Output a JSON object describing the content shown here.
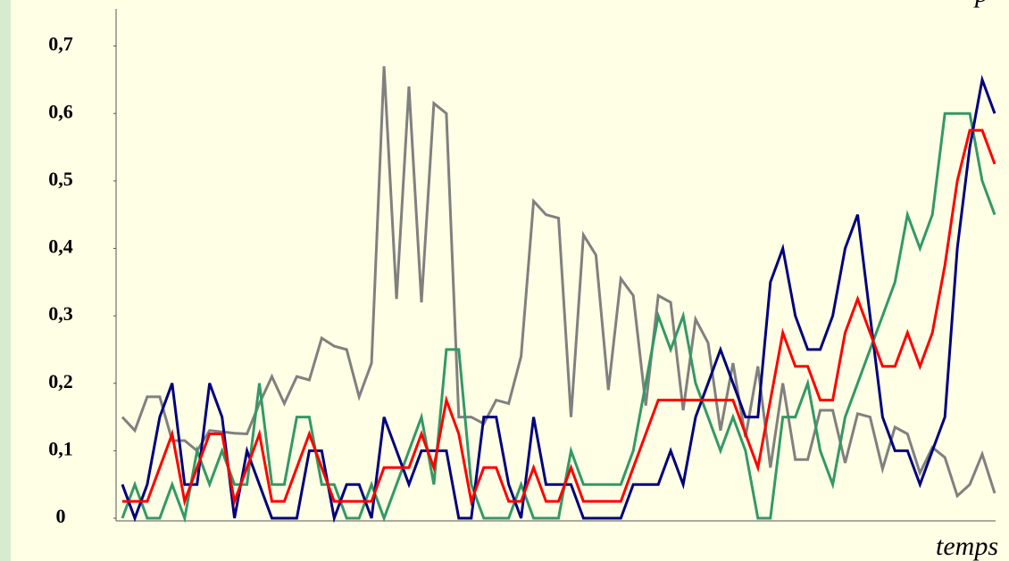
{
  "chart_data": {
    "type": "line",
    "x_label": "temps",
    "y_label": "p",
    "ylim": [
      0,
      0.755
    ],
    "yticks": [
      0,
      {
        "value": 0.1,
        "label": "0,1"
      },
      {
        "value": 0.2,
        "label": "0,2"
      },
      {
        "value": 0.3,
        "label": "0,3"
      },
      {
        "value": 0.4,
        "label": "0,4"
      },
      {
        "value": 0.5,
        "label": "0,5"
      },
      {
        "value": 0.6,
        "label": "0,6"
      },
      {
        "value": 0.7,
        "label": "0,7"
      }
    ],
    "grid": false,
    "series": [
      {
        "color": "#808080",
        "values": [
          0.15,
          0.13,
          0.18,
          0.18,
          0.115,
          0.115,
          0.1,
          0.13,
          0.128,
          0.126,
          0.125,
          0.17,
          0.21,
          0.17,
          0.21,
          0.205,
          0.267,
          0.255,
          0.25,
          0.18,
          0.23,
          0.67,
          0.325,
          0.64,
          0.32,
          0.615,
          0.6,
          0.15,
          0.15,
          0.14,
          0.175,
          0.17,
          0.24,
          0.47,
          0.45,
          0.445,
          0.15,
          0.42,
          0.39,
          0.19,
          0.355,
          0.33,
          0.167,
          0.33,
          0.32,
          0.16,
          0.295,
          0.26,
          0.13,
          0.23,
          0.12,
          0.225,
          0.075,
          0.2,
          0.087,
          0.087,
          0.16,
          0.16,
          0.082,
          0.155,
          0.15,
          0.073,
          0.135,
          0.125,
          0.067,
          0.105,
          0.09,
          0.033,
          0.05,
          0.095,
          0.037
        ]
      },
      {
        "color": "#339966",
        "values": [
          0,
          0.05,
          0,
          0,
          0.05,
          0,
          0.1,
          0.05,
          0.1,
          0.05,
          0.05,
          0.2,
          0.05,
          0.05,
          0.15,
          0.15,
          0.05,
          0.05,
          0,
          0,
          0.05,
          0,
          0.05,
          0.1,
          0.15,
          0.05,
          0.25,
          0.25,
          0.05,
          0,
          0,
          0,
          0.05,
          0,
          0,
          0,
          0.1,
          0.05,
          0.05,
          0.05,
          0.05,
          0.1,
          0.2,
          0.3,
          0.25,
          0.3,
          0.2,
          0.15,
          0.1,
          0.15,
          0.1,
          0,
          0,
          0.15,
          0.15,
          0.2,
          0.1,
          0.05,
          0.15,
          0.2,
          0.25,
          0.3,
          0.35,
          0.45,
          0.4,
          0.45,
          0.6,
          0.6,
          0.6,
          0.5,
          0.45
        ]
      },
      {
        "color": "#000080",
        "values": [
          0.05,
          0,
          0.05,
          0.15,
          0.2,
          0.05,
          0.05,
          0.2,
          0.15,
          0,
          0.1,
          0.05,
          0,
          0,
          0,
          0.1,
          0.1,
          0,
          0.05,
          0.05,
          0,
          0.15,
          0.1,
          0.05,
          0.1,
          0.1,
          0.1,
          0,
          0,
          0.15,
          0.15,
          0.05,
          0,
          0.15,
          0.05,
          0.05,
          0.05,
          0,
          0,
          0,
          0,
          0.05,
          0.05,
          0.05,
          0.1,
          0.05,
          0.15,
          0.2,
          0.25,
          0.2,
          0.15,
          0.15,
          0.35,
          0.4,
          0.3,
          0.25,
          0.25,
          0.3,
          0.4,
          0.45,
          0.3,
          0.15,
          0.1,
          0.1,
          0.05,
          0.1,
          0.15,
          0.4,
          0.55,
          0.65,
          0.6
        ]
      },
      {
        "color": "#ff0000",
        "values": [
          0.025,
          0.025,
          0.025,
          0.075,
          0.125,
          0.025,
          0.075,
          0.125,
          0.125,
          0.025,
          0.075,
          0.125,
          0.025,
          0.025,
          0.075,
          0.125,
          0.075,
          0.025,
          0.025,
          0.025,
          0.025,
          0.075,
          0.075,
          0.075,
          0.125,
          0.075,
          0.175,
          0.125,
          0.025,
          0.075,
          0.075,
          0.025,
          0.025,
          0.075,
          0.025,
          0.025,
          0.075,
          0.025,
          0.025,
          0.025,
          0.025,
          0.075,
          0.125,
          0.175,
          0.175,
          0.175,
          0.175,
          0.175,
          0.175,
          0.175,
          0.125,
          0.075,
          0.175,
          0.275,
          0.225,
          0.225,
          0.175,
          0.175,
          0.275,
          0.325,
          0.275,
          0.225,
          0.225,
          0.275,
          0.225,
          0.275,
          0.375,
          0.5,
          0.575,
          0.575,
          0.525
        ]
      }
    ]
  }
}
